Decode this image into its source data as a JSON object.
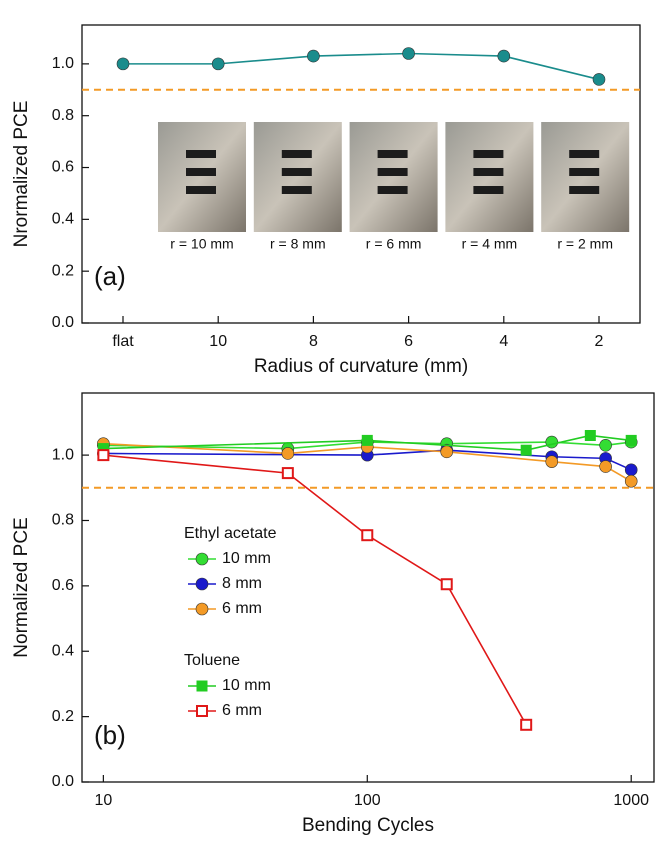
{
  "chart_data": [
    {
      "type": "line",
      "panel_label": "(a)",
      "xlabel": "Radius of curvature (mm)",
      "ylabel": "Nrormalized PCE",
      "categories": [
        "flat",
        "10",
        "8",
        "6",
        "4",
        "2"
      ],
      "series": [
        {
          "color": "#1a8c8c",
          "marker": "circle",
          "values": [
            1.0,
            1.0,
            1.03,
            1.04,
            1.03,
            0.94
          ]
        }
      ],
      "ylim": [
        0,
        1.15
      ],
      "yticks": [
        {
          "value": 0,
          "label": "0.0"
        },
        {
          "value": 0.2,
          "label": "0.2"
        },
        {
          "value": 0.4,
          "label": "0.4"
        },
        {
          "value": 0.6,
          "label": "0.6"
        },
        {
          "value": 0.8,
          "label": "0.8"
        },
        {
          "value": 1,
          "label": "1.0"
        }
      ],
      "hline": {
        "value": 0.9,
        "color": "#f39a26"
      },
      "photo_captions": [
        "r = 10 mm",
        "r = 8 mm",
        "r = 6 mm",
        "r = 4 mm",
        "r = 2 mm"
      ]
    },
    {
      "type": "line",
      "panel_label": "(b)",
      "xlabel": "Bending Cycles",
      "ylabel": "Normalized PCE",
      "xscale": "log",
      "xlim": [
        8.3,
        1220
      ],
      "xticks": [
        10,
        100,
        1000
      ],
      "ylim": [
        0,
        1.19
      ],
      "yticks": [
        {
          "value": 0,
          "label": "0.0"
        },
        {
          "value": 0.2,
          "label": "0.2"
        },
        {
          "value": 0.4,
          "label": "0.4"
        },
        {
          "value": 0.6,
          "label": "0.6"
        },
        {
          "value": 0.8,
          "label": "0.8"
        },
        {
          "value": 1,
          "label": "1.0"
        }
      ],
      "hline": {
        "value": 0.9,
        "color": "#f39a26"
      },
      "legend_loc": "center-left",
      "legend_groups": [
        {
          "title": "Ethyl acetate",
          "series": [
            {
              "name": "10 mm",
              "color": "#33dd33",
              "marker": "circle",
              "x": [
                10,
                50,
                100,
                200,
                500,
                800,
                1000
              ],
              "values": [
                1.03,
                1.02,
                1.04,
                1.035,
                1.04,
                1.03,
                1.04
              ]
            },
            {
              "name": "8 mm",
              "color": "#1a1acc",
              "marker": "circle",
              "x": [
                10,
                100,
                200,
                500,
                800,
                1000
              ],
              "values": [
                1.005,
                1.0,
                1.015,
                0.995,
                0.99,
                0.955
              ]
            },
            {
              "name": "6 mm",
              "color": "#f39a26",
              "marker": "circle",
              "x": [
                10,
                50,
                100,
                200,
                500,
                800,
                1000
              ],
              "values": [
                1.035,
                1.005,
                1.025,
                1.01,
                0.98,
                0.965,
                0.92
              ]
            }
          ]
        },
        {
          "title": "Toluene",
          "series": [
            {
              "name": "10 mm",
              "color": "#22cc22",
              "marker": "square",
              "x": [
                10,
                100,
                400,
                700,
                1000
              ],
              "values": [
                1.02,
                1.045,
                1.015,
                1.06,
                1.045
              ]
            },
            {
              "name": "6 mm",
              "color": "#e01818",
              "marker": "open-square",
              "x": [
                10,
                50,
                100,
                200,
                400
              ],
              "values": [
                1.0,
                0.945,
                0.755,
                0.605,
                0.175
              ]
            }
          ]
        }
      ]
    }
  ]
}
